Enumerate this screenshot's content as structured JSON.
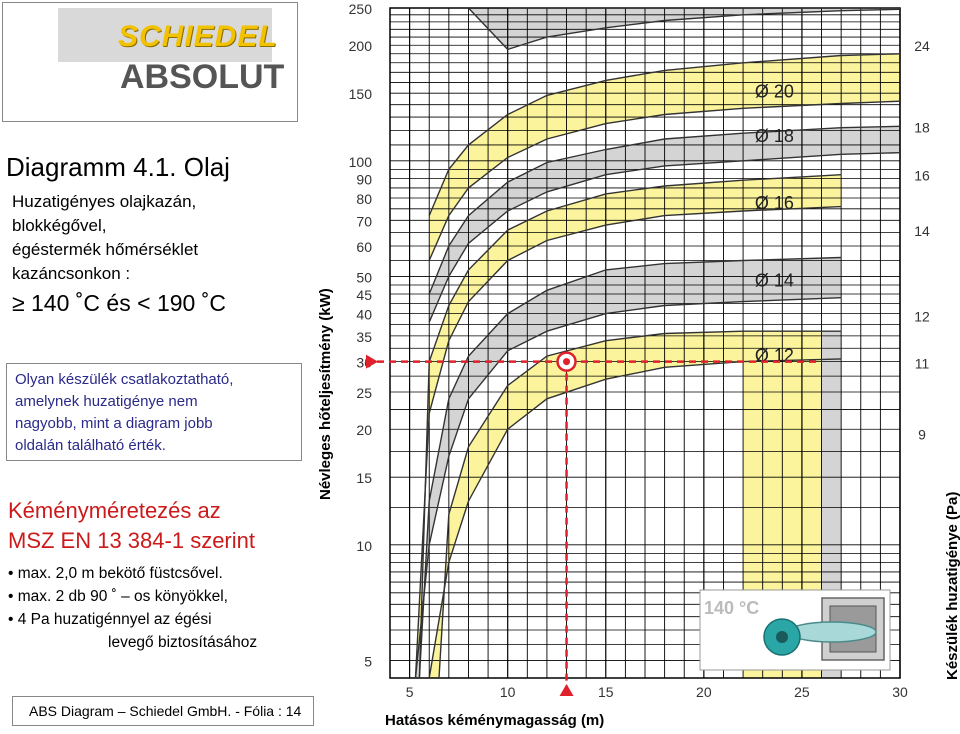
{
  "logo": {
    "top": "SCHIEDEL",
    "bottom": "ABSOLUT"
  },
  "left_panel": {
    "title": "Diagramm 4.1. Olaj",
    "desc_lines": [
      "Huzatigényes olajkazán,",
      "blokkégővel,",
      "égéstermék hőmérséklet",
      "kazáncsonkon :"
    ],
    "temp_condition": "≥ 140 ˚C és < 190 ˚C",
    "note_lines": [
      "Olyan készülék csatlakoztatható,",
      "amelynek huzatigénye nem",
      "nagyobb, mint a diagram jobb",
      "oldalán található érték."
    ],
    "norm_lines": [
      "Kéményméretezés az",
      "MSZ EN 13 384-1 szerint"
    ],
    "bullets": [
      "• max. 2,0 m bekötő füstcsővel.",
      "• max. 2 db 90 ˚ – os könyökkel,",
      "• 4 Pa huzatigénnyel az égési"
    ],
    "bullet_cont": "levegő biztosításához",
    "footer": "ABS Diagram – Schiedel GmbH. - Fólia : 14"
  },
  "colors": {
    "curve_band_grey": "#d4d4d4",
    "curve_band_yellow": "#fbf49c",
    "grid_line": "#000000",
    "marker_red": "#e0202a",
    "title_red": "#cc1a1a",
    "note_blue": "#2a2a8a"
  },
  "chart_data": {
    "type": "line",
    "xlabel": "Hatásos kéménymagasság (m)",
    "ylabel": "Névleges hőteljesítmény (kW)",
    "y2label": "Készülék huzatigénye (Pa)",
    "x_ticks": [
      5,
      10,
      15,
      20,
      25,
      30
    ],
    "xlim": [
      4,
      30
    ],
    "y_scale": "log",
    "y_ticks": [
      5,
      10,
      15,
      20,
      25,
      30,
      35,
      40,
      45,
      50,
      60,
      70,
      80,
      90,
      100,
      150,
      200,
      250
    ],
    "ylim": [
      4.5,
      250
    ],
    "y2_ticks": [
      {
        "at_kw": 19.5,
        "label": "9"
      },
      {
        "at_kw": 29.8,
        "label": "11"
      },
      {
        "at_kw": 39.6,
        "label": "12"
      },
      {
        "at_kw": 66.0,
        "label": "14"
      },
      {
        "at_kw": 92.0,
        "label": "16"
      },
      {
        "at_kw": 123.0,
        "label": "18"
      },
      {
        "at_kw": 200.0,
        "label": "24"
      }
    ],
    "series": [
      {
        "name": "Ø 12",
        "upper": [
          [
            6.5,
            4.5
          ],
          [
            7,
            12
          ],
          [
            8,
            18
          ],
          [
            10,
            26
          ],
          [
            12,
            31
          ],
          [
            15,
            34
          ],
          [
            18,
            35.5
          ],
          [
            22,
            36
          ],
          [
            27,
            36
          ]
        ],
        "lower": [
          [
            6,
            4.5
          ],
          [
            7,
            9
          ],
          [
            8,
            13
          ],
          [
            10,
            20
          ],
          [
            12,
            24
          ],
          [
            15,
            27
          ],
          [
            18,
            29
          ],
          [
            22,
            30
          ],
          [
            27,
            30.5
          ]
        ],
        "end_x": 27
      },
      {
        "name": "Ø 14",
        "upper": [
          [
            5.5,
            4.5
          ],
          [
            6,
            13
          ],
          [
            7,
            24
          ],
          [
            8,
            31
          ],
          [
            10,
            40
          ],
          [
            12,
            46
          ],
          [
            15,
            52
          ],
          [
            18,
            54
          ],
          [
            22,
            55
          ],
          [
            27,
            56
          ]
        ],
        "lower": [
          [
            5.3,
            4.5
          ],
          [
            6,
            10
          ],
          [
            7,
            17
          ],
          [
            8,
            24
          ],
          [
            10,
            32
          ],
          [
            12,
            36
          ],
          [
            15,
            40
          ],
          [
            18,
            42
          ],
          [
            22,
            43
          ],
          [
            27,
            44
          ]
        ],
        "end_x": 27
      },
      {
        "name": "Ø 16",
        "upper": [
          [
            5.5,
            4.5
          ],
          [
            6,
            30
          ],
          [
            7,
            42
          ],
          [
            8,
            52
          ],
          [
            10,
            66
          ],
          [
            12,
            74
          ],
          [
            15,
            82
          ],
          [
            18,
            86
          ],
          [
            22,
            89
          ],
          [
            27,
            92
          ]
        ],
        "lower": [
          [
            5.3,
            4.5
          ],
          [
            6,
            22
          ],
          [
            7,
            34
          ],
          [
            8,
            43
          ],
          [
            10,
            55
          ],
          [
            12,
            62
          ],
          [
            15,
            68
          ],
          [
            18,
            72
          ],
          [
            22,
            74
          ],
          [
            27,
            76
          ]
        ],
        "end_x": 27
      },
      {
        "name": "Ø 18",
        "upper": [
          [
            6,
            45
          ],
          [
            7,
            60
          ],
          [
            8,
            72
          ],
          [
            10,
            88
          ],
          [
            12,
            99
          ],
          [
            15,
            107
          ],
          [
            18,
            114
          ],
          [
            22,
            118
          ],
          [
            27,
            122
          ],
          [
            30,
            123
          ]
        ],
        "lower": [
          [
            6,
            38
          ],
          [
            7,
            50
          ],
          [
            8,
            61
          ],
          [
            10,
            74
          ],
          [
            12,
            83
          ],
          [
            15,
            92
          ],
          [
            18,
            97
          ],
          [
            22,
            100
          ],
          [
            27,
            104
          ],
          [
            30,
            105
          ]
        ],
        "end_x": 30
      },
      {
        "name": "Ø 20",
        "upper": [
          [
            6,
            72
          ],
          [
            7,
            95
          ],
          [
            8,
            110
          ],
          [
            10,
            132
          ],
          [
            12,
            148
          ],
          [
            15,
            162
          ],
          [
            18,
            172
          ],
          [
            22,
            180
          ],
          [
            27,
            188
          ],
          [
            30,
            190
          ]
        ],
        "lower": [
          [
            6,
            55
          ],
          [
            7,
            72
          ],
          [
            8,
            85
          ],
          [
            10,
            102
          ],
          [
            12,
            114
          ],
          [
            15,
            125
          ],
          [
            18,
            132
          ],
          [
            22,
            137
          ],
          [
            27,
            141
          ],
          [
            30,
            143
          ]
        ],
        "end_x": 30
      },
      {
        "name": "",
        "upper": [
          [
            10,
            250
          ],
          [
            12,
            250
          ],
          [
            15,
            250
          ],
          [
            18,
            250
          ],
          [
            22,
            250
          ],
          [
            27,
            250
          ],
          [
            30,
            250
          ]
        ],
        "lower": [
          [
            8,
            250
          ],
          [
            10,
            195
          ],
          [
            12,
            210
          ],
          [
            15,
            222
          ],
          [
            18,
            232
          ],
          [
            22,
            240
          ],
          [
            27,
            246
          ],
          [
            30,
            248
          ]
        ],
        "end_x": 30
      }
    ],
    "example_point": {
      "x": 13,
      "y": 30
    },
    "inset_label": "140 °C"
  }
}
